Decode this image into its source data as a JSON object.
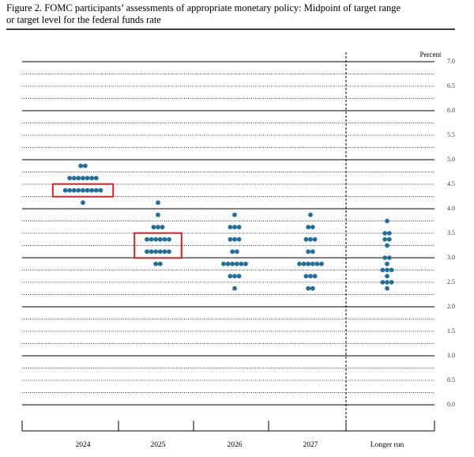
{
  "chart_data": {
    "type": "dot",
    "title": "Figure 2.  FOMC participants’ assessments of appropriate monetary policy:  Midpoint of target range",
    "subtitle": "or target level for the federal funds rate",
    "y_unit_label": "Percent",
    "categories": [
      "2024",
      "2025",
      "2026",
      "2027",
      "Longer run"
    ],
    "color": "#1f6f9e",
    "highlight_color": "#e02020",
    "dots": [
      {
        "values": [
          4.875,
          4.625,
          4.375,
          4.125
        ],
        "counts": [
          2,
          7,
          9,
          1
        ]
      },
      {
        "values": [
          4.125,
          3.875,
          3.625,
          3.375,
          3.125,
          2.875
        ],
        "counts": [
          1,
          1,
          3,
          6,
          6,
          2
        ]
      },
      {
        "values": [
          3.875,
          3.625,
          3.375,
          3.125,
          2.875,
          2.625,
          2.375
        ],
        "counts": [
          1,
          3,
          3,
          2,
          6,
          3,
          1
        ]
      },
      {
        "values": [
          3.875,
          3.625,
          3.375,
          3.125,
          2.875,
          2.625,
          2.375
        ],
        "counts": [
          1,
          2,
          3,
          2,
          6,
          3,
          2
        ]
      },
      {
        "values": [
          3.75,
          3.5,
          3.375,
          3.25,
          3.0,
          2.875,
          2.75,
          2.625,
          2.5,
          2.375
        ],
        "counts": [
          1,
          2,
          2,
          1,
          2,
          1,
          3,
          1,
          3,
          1
        ]
      }
    ],
    "highlights": [
      {
        "category": 0,
        "range": [
          4.375,
          4.375
        ]
      },
      {
        "category": 1,
        "range": [
          3.125,
          3.375
        ]
      }
    ],
    "ylim": [
      0,
      7
    ],
    "yticks": [
      {
        "value": 0,
        "label": "0.0"
      },
      0.5,
      {
        "value": 1,
        "label": "1.0"
      },
      1.5,
      {
        "value": 2,
        "label": "2.0"
      },
      2.5,
      {
        "value": 3,
        "label": "3.0"
      },
      3.5,
      {
        "value": 4,
        "label": "4.0"
      },
      4.5,
      {
        "value": 5,
        "label": "5.0"
      },
      5.5,
      {
        "value": 6,
        "label": "6.0"
      },
      6.5,
      {
        "value": 7,
        "label": "7.0"
      }
    ],
    "minor_yticks": [
      0.25,
      0.75,
      1.25,
      1.75,
      2.25,
      2.75,
      3.25,
      3.75,
      4.25,
      4.75,
      5.25,
      5.75,
      6.25,
      6.75
    ]
  }
}
